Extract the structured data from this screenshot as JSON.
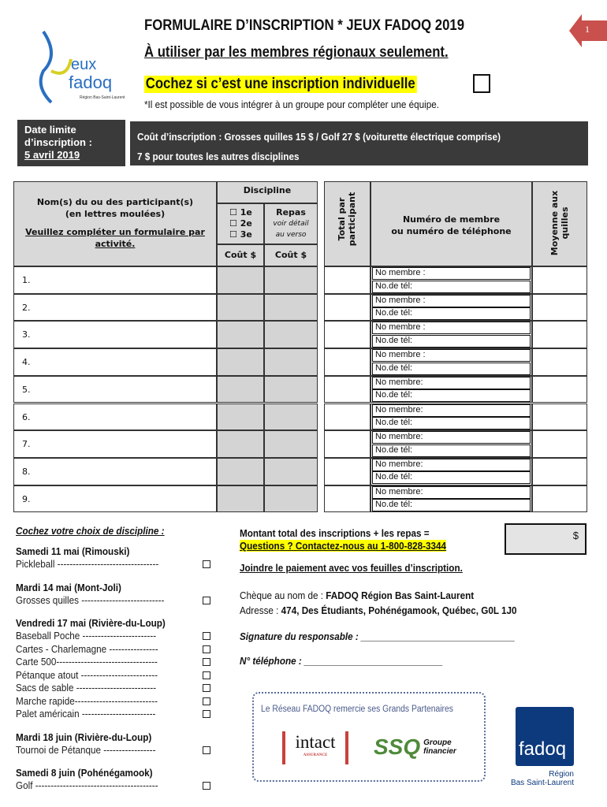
{
  "header": {
    "title": "FORMULAIRE D’INSCRIPTION * JEUX FADOQ 2019",
    "subtitle": "À utiliser par les membres régionaux seulement.",
    "individual": "Cochez si c’est une inscription individuelle",
    "note": "*Il est possible de vous intégrer à un groupe pour compléter une équipe.",
    "page_number": "1",
    "logo_text": "Jeux fadoq Région Bas-Saint-Laurent"
  },
  "deadline": {
    "line1": "Date limite",
    "line2": "d’inscription :",
    "date": "5 avril 2019"
  },
  "cost": {
    "line1": "Coût d’inscription : Grosses quilles 15 $ / Golf 27 $ (voiturette électrique comprise)",
    "line2": "7 $ pour toutes les autres disciplines"
  },
  "table": {
    "name_header_1": "Nom(s) du ou des participant(s)",
    "name_header_2": "(en lettres moulées)",
    "name_header_3": "Veuillez compléter un formulaire par",
    "name_header_4": "activité.",
    "discipline": "Discipline",
    "places": [
      "1e",
      "2e",
      "3e"
    ],
    "repas": "Repas",
    "repas_note_1": "voir détail",
    "repas_note_2": "au verso",
    "cout": "Coût $",
    "total": "Total par participant",
    "numero_1": "Numéro de membre",
    "numero_2": "ou numéro de téléphone",
    "moyenne": "Moyenne aux quilles",
    "rows": [
      {
        "n": "1.",
        "m": "No membre :",
        "t": "No.de tél:"
      },
      {
        "n": "2.",
        "m": "No membre :",
        "t": "No.de tél:"
      },
      {
        "n": "3.",
        "m": "No membre :",
        "t": "No.de tél:"
      },
      {
        "n": "4.",
        "m": "No membre :",
        "t": "No.de tél:"
      },
      {
        "n": "5.",
        "m": "No membre:",
        "t": "No.de tél:"
      },
      {
        "n": "6.",
        "m": "No membre:",
        "t": "No.de tél:"
      },
      {
        "n": "7.",
        "m": "No membre:",
        "t": "No.de tél:"
      },
      {
        "n": "8.",
        "m": "No membre:",
        "t": "No.de tél:"
      },
      {
        "n": "9.",
        "m": "No membre:",
        "t": "No.de tél:"
      }
    ]
  },
  "disciplines": {
    "title": "Cochez votre choix de discipline :",
    "groups": [
      {
        "date": "Samedi 11 mai (Rimouski)",
        "items": [
          "Pickleball ---------------------------------"
        ]
      },
      {
        "date": "Mardi 14 mai (Mont-Joli)",
        "items": [
          "Grosses quilles ---------------------------"
        ]
      },
      {
        "date": "Vendredi 17 mai (Rivière-du-Loup)",
        "items": [
          "Baseball Poche ------------------------",
          "Cartes - Charlemagne ----------------",
          "Carte 500---------------------------------",
          "Pétanque atout -------------------------",
          "Sacs de sable --------------------------",
          "Marche rapide---------------------------",
          "Palet américain ------------------------"
        ]
      },
      {
        "date": "Mardi 18 juin (Rivière-du-Loup)",
        "items": [
          "Tournoi de Pétanque -----------------"
        ]
      },
      {
        "date": "Samedi 8 juin (Pohénégamook)",
        "items": [
          "Golf ----------------------------------------"
        ]
      }
    ]
  },
  "payment": {
    "total_label": "Montant total des inscriptions + les repas =",
    "currency": "$",
    "questions": "Questions ? Contactez-nous au 1-800-828-3344",
    "join": "Joindre le paiement avec vos feuilles d’inscription.",
    "cheque_label": "Chèque au nom de : ",
    "cheque_value": "FADOQ Région Bas Saint-Laurent",
    "address_label": "Adresse : ",
    "address_value": "474, Des Étudiants, Pohénégamook, Québec, G0L 1J0",
    "signature": "Signature du responsable : ______________________________",
    "phone": "N° téléphone : ___________________________"
  },
  "sponsors": {
    "thanks": "Le Réseau FADOQ remercie ses Grands Partenaires",
    "intact": "intact",
    "intact_sub": "ASSURANCE",
    "ssq": "SSQ",
    "ssq_sub1": "Groupe",
    "ssq_sub2": "financier",
    "fadoq": "fadoq",
    "region1": "Région",
    "region2": "Bas Saint-Laurent"
  },
  "colors": {
    "highlight": "#ffff00",
    "dark_panel": "#3a3a3a",
    "header_gray": "#d9d9d9",
    "page_badge": "#c9504c",
    "fadoq_blue": "#0d3a7d",
    "ssq_green": "#4f8a3a",
    "intact_red": "#c8403c"
  }
}
